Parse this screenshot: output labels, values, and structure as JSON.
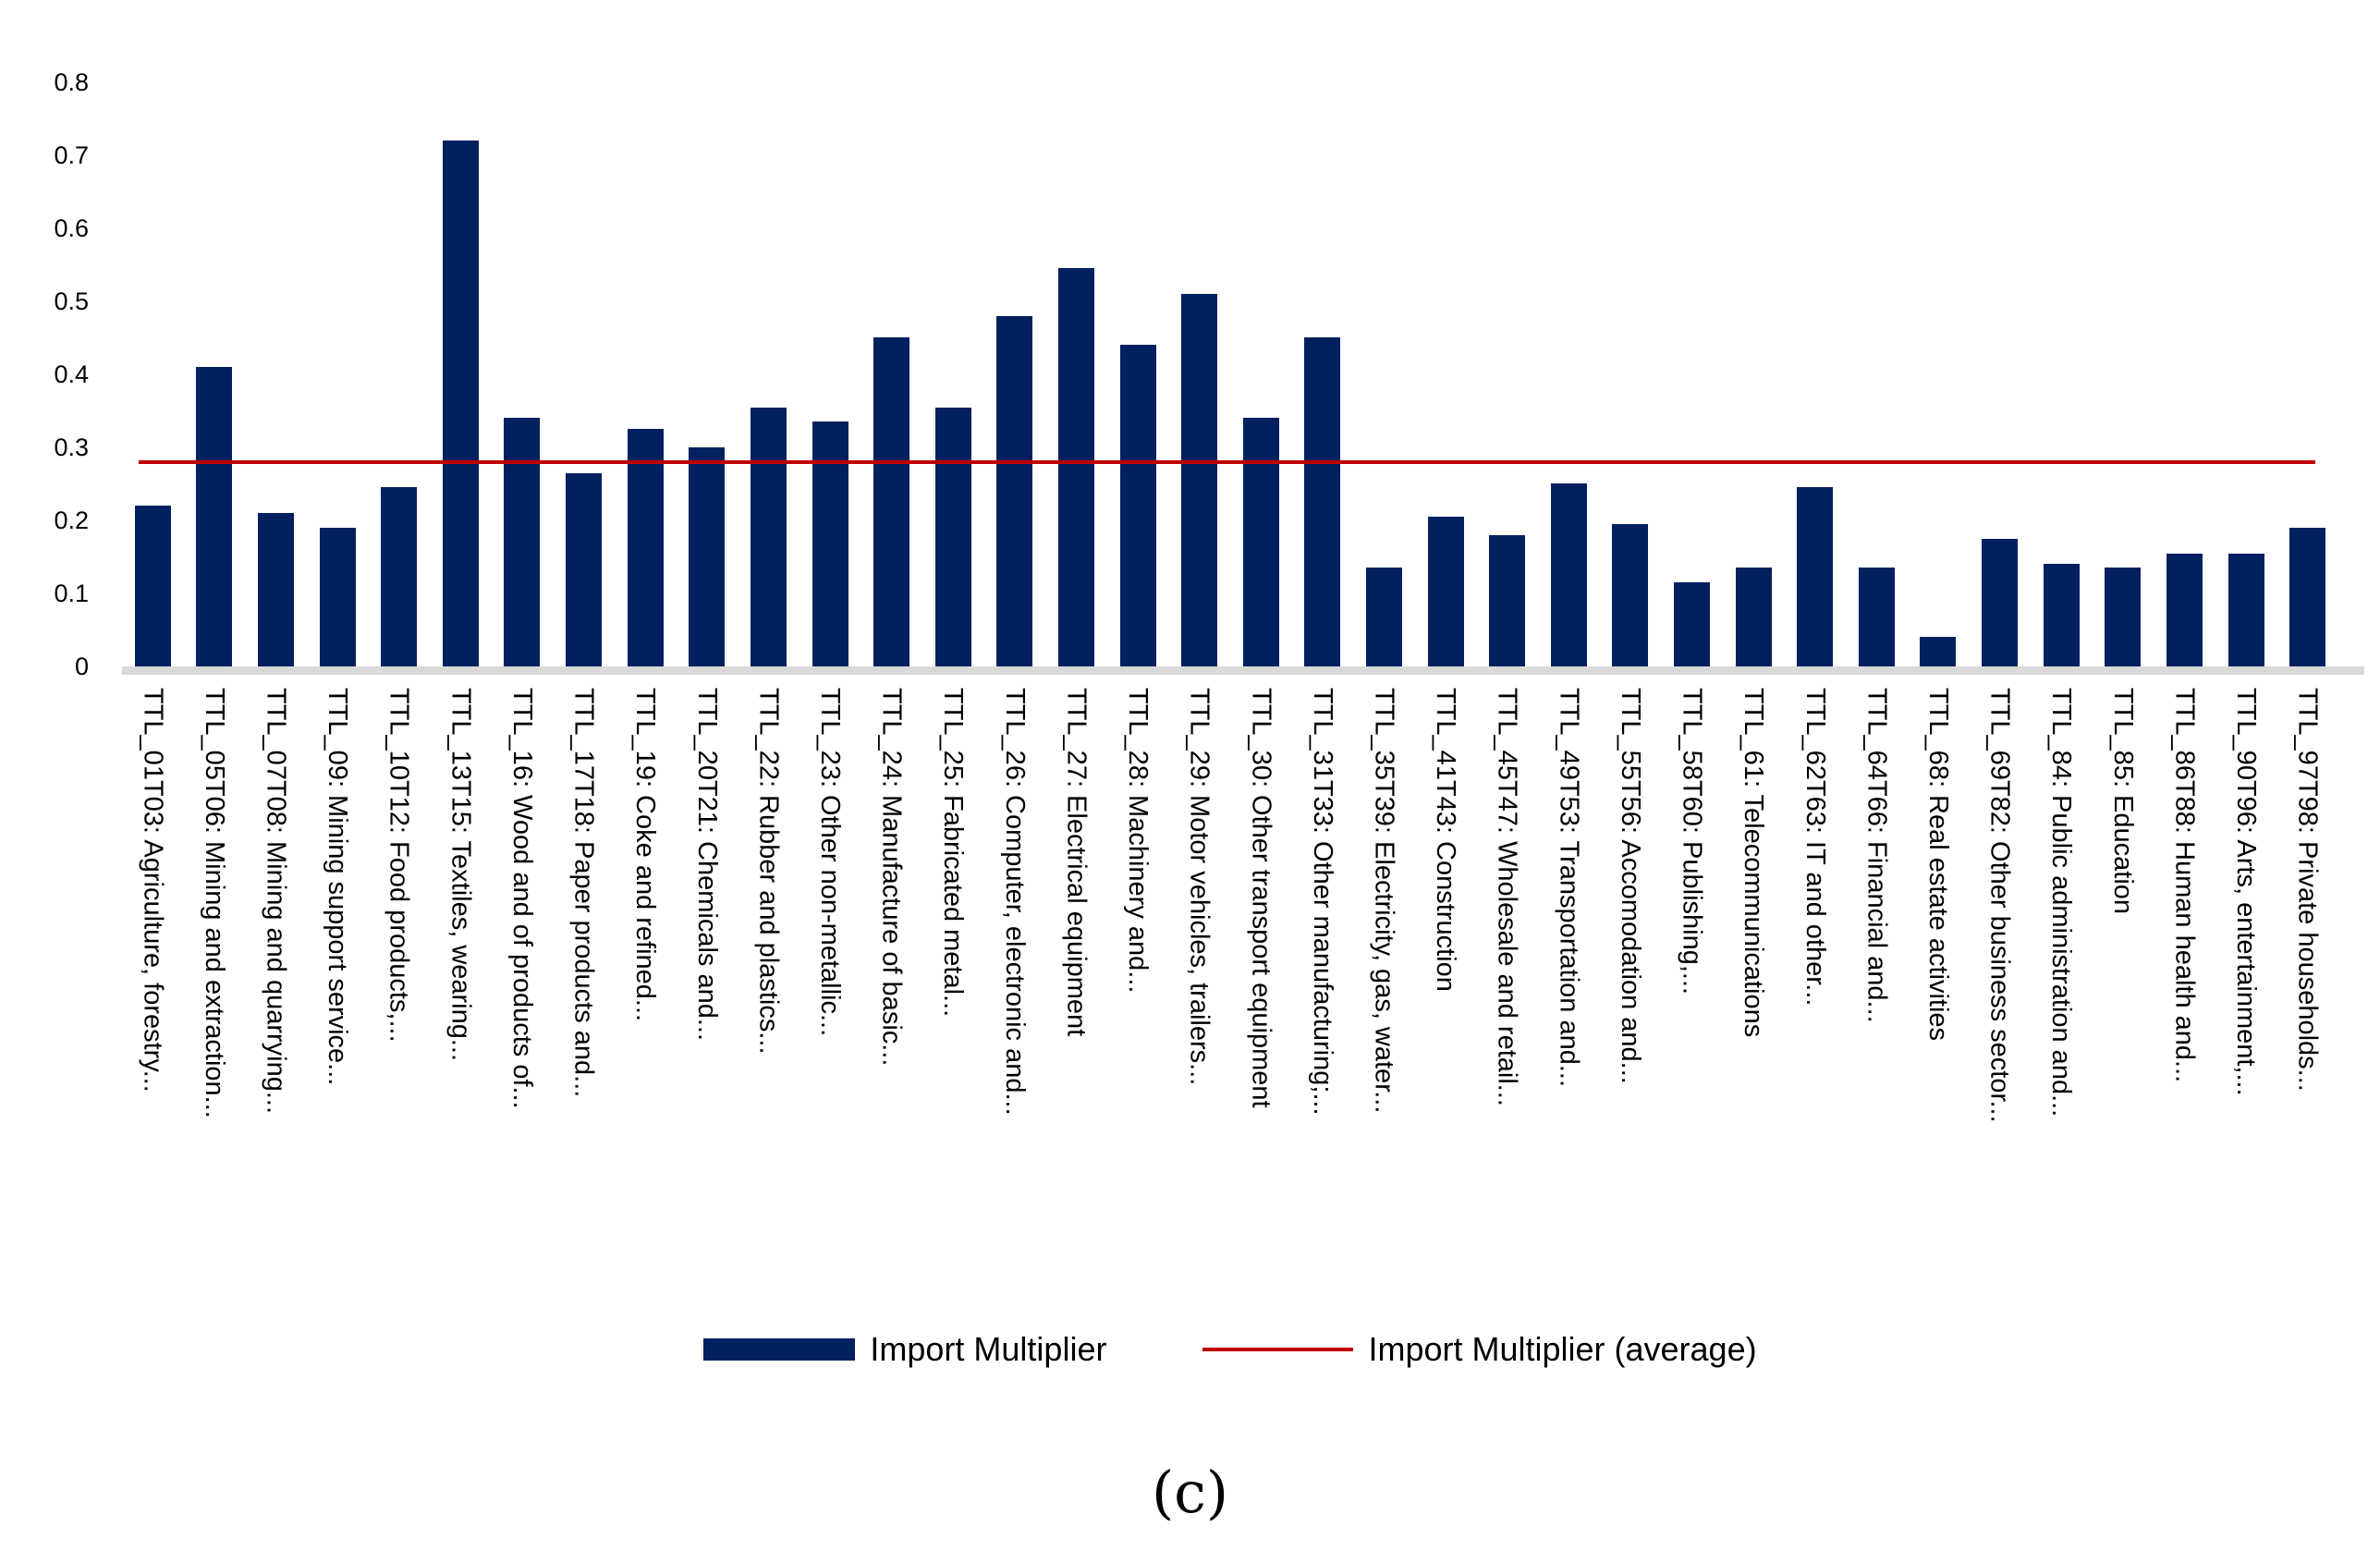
{
  "figure": {
    "caption": "(c)"
  },
  "legend": {
    "bar_label": "Import Multiplier",
    "line_label": "Import Multiplier (average)"
  },
  "chart_data": {
    "type": "bar",
    "title": "",
    "xlabel": "",
    "ylabel": "",
    "categories": [
      "TTL_01T03: Agriculture, forestry...",
      "TTL_05T06: Mining and extraction...",
      "TTL_07T08: Mining and quarrying...",
      "TTL_09: Mining support service...",
      "TTL_10T12: Food products,...",
      "TTL_13T15: Textiles, wearing...",
      "TTL_16: Wood and of products of...",
      "TTL_17T18: Paper products and...",
      "TTL_19: Coke and refined...",
      "TTL_20T21: Chemicals and...",
      "TTL_22: Rubber and plastics...",
      "TTL_23: Other non-metallic...",
      "TTL_24: Manufacture of basic...",
      "TTL_25: Fabricated metal...",
      "TTL_26: Computer, electronic and...",
      "TTL_27: Electrical equipment",
      "TTL_28: Machinery and...",
      "TTL_29: Motor vehicles, trailers...",
      "TTL_30: Other transport equipment",
      "TTL_31T33: Other manufacturing;...",
      "TTL_35T39: Electricity, gas, water...",
      "TTL_41T43: Construction",
      "TTL_45T47: Wholesale and retail...",
      "TTL_49T53: Transportation and...",
      "TTL_55T56: Accomodation and...",
      "TTL_58T60: Publishing,...",
      "TTL_61: Telecommunications",
      "TTL_62T63: IT and other...",
      "TTL_64T66: Financial and...",
      "TTL_68: Real estate activities",
      "TTL_69T82: Other business sector...",
      "TTL_84: Public administration and...",
      "TTL_85: Education",
      "TTL_86T88: Human health and...",
      "TTL_90T96: Arts, entertainment,...",
      "TTL_97T98: Private households..."
    ],
    "series": [
      {
        "name": "Import Multiplier",
        "color": "#002060",
        "values": [
          0.22,
          0.41,
          0.21,
          0.19,
          0.245,
          0.72,
          0.34,
          0.265,
          0.325,
          0.3,
          0.355,
          0.335,
          0.45,
          0.355,
          0.48,
          0.545,
          0.44,
          0.51,
          0.34,
          0.45,
          0.135,
          0.205,
          0.18,
          0.25,
          0.195,
          0.115,
          0.135,
          0.245,
          0.135,
          0.04,
          0.175,
          0.14,
          0.135,
          0.155,
          0.155,
          0.19
        ]
      }
    ],
    "average_line": {
      "name": "Import Multiplier (average)",
      "value": 0.28,
      "color": "#C00000"
    },
    "ylim": [
      0,
      0.8
    ],
    "ytick_labels": [
      "0",
      "0.1",
      "0.2",
      "0.3",
      "0.4",
      "0.5",
      "0.6",
      "0.7",
      "0.8"
    ],
    "grid": false,
    "legend_position": "bottom",
    "axis_strip_color": "#D9D9D9",
    "caption": "(c)"
  }
}
